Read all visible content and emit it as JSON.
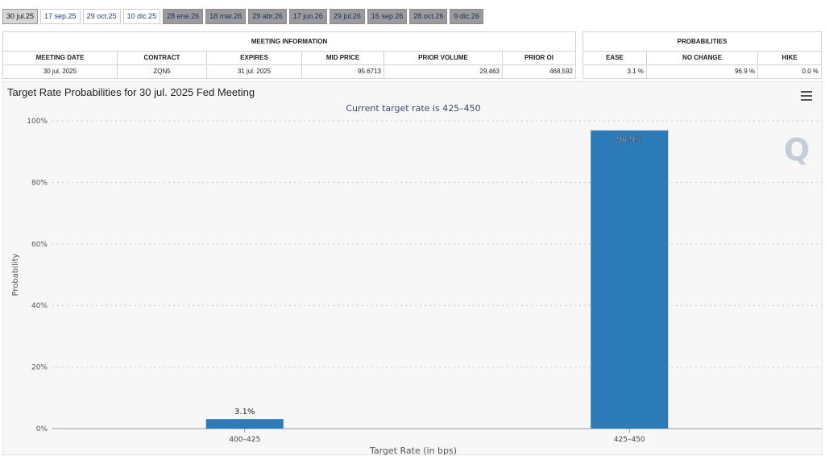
{
  "tabs": [
    {
      "label": "30 jul.25",
      "style": "active"
    },
    {
      "label": "17 sep.25",
      "style": "white"
    },
    {
      "label": "29 oct.25",
      "style": "white"
    },
    {
      "label": "10 dic.25",
      "style": "white"
    },
    {
      "label": "28 ene.26",
      "style": "gray"
    },
    {
      "label": "18 mar.26",
      "style": "gray"
    },
    {
      "label": "29 abr.26",
      "style": "gray"
    },
    {
      "label": "17 jun.26",
      "style": "gray"
    },
    {
      "label": "29 jul.26",
      "style": "gray"
    },
    {
      "label": "16 sep.26",
      "style": "gray"
    },
    {
      "label": "28 oct.26",
      "style": "gray"
    },
    {
      "label": "9 dic.26",
      "style": "gray"
    }
  ],
  "meeting": {
    "title": "MEETING INFORMATION",
    "headers": [
      "MEETING DATE",
      "CONTRACT",
      "EXPIRES",
      "MID PRICE",
      "PRIOR VOLUME",
      "PRIOR OI"
    ],
    "values": [
      "30 jul. 2025",
      "ZQN5",
      "31 jul. 2025",
      "95.6713",
      "29,463",
      "468,592"
    ]
  },
  "probabilities": {
    "title": "PROBABILITIES",
    "headers": [
      "EASE",
      "NO CHANGE",
      "HIKE"
    ],
    "values": [
      "3.1 %",
      "96.9 %",
      "0.0 %"
    ]
  },
  "chart_title": "Target Rate Probabilities for 30 jul. 2025 Fed Meeting",
  "watermark": "Q",
  "chart_data": {
    "type": "bar",
    "subtitle": "Current target rate is 425–450",
    "xlabel": "Target Rate (in bps)",
    "ylabel": "Probability",
    "categories": [
      "400–425",
      "425–450"
    ],
    "values": [
      3.1,
      96.9
    ],
    "value_labels": [
      "3.1%",
      "96.9%"
    ],
    "y_ticks": [
      "0%",
      "20%",
      "40%",
      "60%",
      "80%",
      "100%"
    ],
    "ylim": [
      0,
      100
    ],
    "grid": true,
    "bar_color": "#2b7bb9"
  }
}
